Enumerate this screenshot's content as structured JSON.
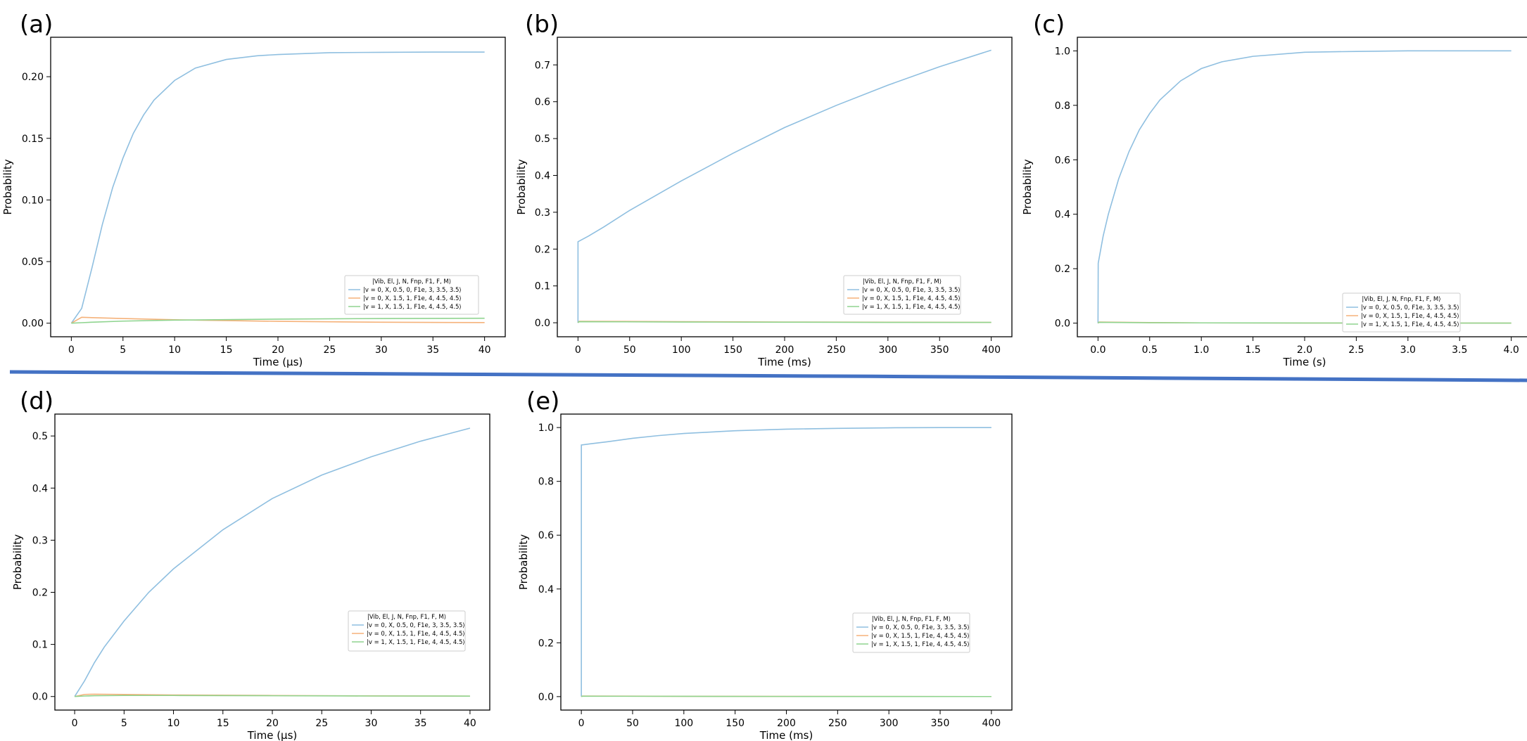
{
  "legend": {
    "title": "|Vib, El, J, N, Fnp, F1, F, M⟩",
    "entries": [
      "|v = 0, X, 0.5, 0, F1e, 3, 3.5, 3.5⟩",
      "|v = 0, X, 1.5, 1, F1e, 4, 4.5, 4.5⟩",
      "|v = 1, X, 1.5, 1, F1e, 4, 4.5, 4.5⟩"
    ]
  },
  "colors": {
    "series": [
      "#8fbfe0",
      "#f5b27a",
      "#8fd48f"
    ],
    "divider": "#4472c4",
    "axes": "#000000"
  },
  "chart_data": [
    {
      "panel": "(a)",
      "type": "line",
      "xlabel": "Time (μs)",
      "ylabel": "Probability",
      "xlim": [
        -2,
        42
      ],
      "ylim": [
        -0.011,
        0.232
      ],
      "xticks": [
        0,
        5,
        10,
        15,
        20,
        25,
        30,
        35,
        40
      ],
      "yticks": [
        0.0,
        0.05,
        0.1,
        0.15,
        0.2
      ],
      "ytick_labels": [
        "0.00",
        "0.05",
        "0.10",
        "0.15",
        "0.20"
      ],
      "grid": false,
      "legend_position": "lower-right",
      "series": [
        {
          "x": [
            0,
            1,
            2,
            3,
            4,
            5,
            6,
            7,
            8,
            10,
            12,
            15,
            18,
            20,
            25,
            30,
            35,
            40
          ],
          "values": [
            0.0,
            0.012,
            0.045,
            0.08,
            0.11,
            0.134,
            0.154,
            0.169,
            0.181,
            0.197,
            0.207,
            0.214,
            0.217,
            0.218,
            0.2195,
            0.2198,
            0.22,
            0.22
          ]
        },
        {
          "x": [
            0,
            1,
            2,
            5,
            10,
            20,
            30,
            40
          ],
          "values": [
            0.0,
            0.0048,
            0.0045,
            0.0038,
            0.0028,
            0.0015,
            0.0008,
            0.0005
          ]
        },
        {
          "x": [
            0,
            1,
            2,
            5,
            10,
            20,
            30,
            40
          ],
          "values": [
            0.0,
            0.0004,
            0.0008,
            0.0017,
            0.0025,
            0.0033,
            0.0038,
            0.004
          ]
        }
      ]
    },
    {
      "panel": "(b)",
      "type": "line",
      "xlabel": "Time (ms)",
      "ylabel": "Probability",
      "xlim": [
        -20,
        420
      ],
      "ylim": [
        -0.038,
        0.775
      ],
      "xticks": [
        0,
        50,
        100,
        150,
        200,
        250,
        300,
        350,
        400
      ],
      "yticks": [
        0.0,
        0.1,
        0.2,
        0.3,
        0.4,
        0.5,
        0.6,
        0.7
      ],
      "ytick_labels": [
        "0.0",
        "0.1",
        "0.2",
        "0.3",
        "0.4",
        "0.5",
        "0.6",
        "0.7"
      ],
      "grid": false,
      "legend_position": "lower-right",
      "series": [
        {
          "x": [
            0,
            0.02,
            10,
            25,
            50,
            75,
            100,
            150,
            200,
            250,
            300,
            350,
            400
          ],
          "values": [
            0.0,
            0.22,
            0.235,
            0.26,
            0.305,
            0.345,
            0.385,
            0.46,
            0.53,
            0.59,
            0.645,
            0.695,
            0.74
          ]
        },
        {
          "x": [
            0,
            1,
            100,
            200,
            300,
            400
          ],
          "values": [
            0.0,
            0.004,
            0.003,
            0.002,
            0.0015,
            0.001
          ]
        },
        {
          "x": [
            0,
            1,
            100,
            200,
            300,
            400
          ],
          "values": [
            0.0,
            0.003,
            0.002,
            0.0015,
            0.001,
            0.001
          ]
        }
      ]
    },
    {
      "panel": "(c)",
      "type": "line",
      "xlabel": "Time (s)",
      "ylabel": "Probability",
      "xlim": [
        -0.2,
        4.2
      ],
      "ylim": [
        -0.05,
        1.05
      ],
      "xticks": [
        0.0,
        0.5,
        1.0,
        1.5,
        2.0,
        2.5,
        3.0,
        3.5,
        4.0
      ],
      "xtick_labels": [
        "0.0",
        "0.5",
        "1.0",
        "1.5",
        "2.0",
        "2.5",
        "3.0",
        "3.5",
        "4.0"
      ],
      "yticks": [
        0.0,
        0.2,
        0.4,
        0.6,
        0.8,
        1.0
      ],
      "ytick_labels": [
        "0.0",
        "0.2",
        "0.4",
        "0.6",
        "0.8",
        "1.0"
      ],
      "grid": false,
      "legend_position": "lower-right",
      "series": [
        {
          "x": [
            0,
            0.002,
            0.05,
            0.1,
            0.2,
            0.3,
            0.4,
            0.5,
            0.6,
            0.8,
            1.0,
            1.2,
            1.5,
            2.0,
            2.5,
            3.0,
            3.5,
            4.0
          ],
          "values": [
            0.0,
            0.22,
            0.32,
            0.4,
            0.53,
            0.63,
            0.71,
            0.77,
            0.82,
            0.89,
            0.935,
            0.96,
            0.98,
            0.995,
            0.998,
            1.0,
            1.0,
            1.0
          ]
        },
        {
          "x": [
            0,
            0.01,
            0.5,
            1.0,
            2.0,
            4.0
          ],
          "values": [
            0.0,
            0.004,
            0.002,
            0.001,
            0.0005,
            0.0003
          ]
        },
        {
          "x": [
            0,
            0.01,
            0.5,
            1.0,
            2.0,
            4.0
          ],
          "values": [
            0.0,
            0.003,
            0.0015,
            0.001,
            0.0005,
            0.0003
          ]
        }
      ]
    },
    {
      "panel": "(d)",
      "type": "line",
      "xlabel": "Time (μs)",
      "ylabel": "Probability",
      "xlim": [
        -2,
        42
      ],
      "ylim": [
        -0.026,
        0.542
      ],
      "xticks": [
        0,
        5,
        10,
        15,
        20,
        25,
        30,
        35,
        40
      ],
      "yticks": [
        0.0,
        0.1,
        0.2,
        0.3,
        0.4,
        0.5
      ],
      "ytick_labels": [
        "0.0",
        "0.1",
        "0.2",
        "0.3",
        "0.4",
        "0.5"
      ],
      "grid": false,
      "legend_position": "lower-right",
      "series": [
        {
          "x": [
            0,
            1,
            2,
            3,
            5,
            7.5,
            10,
            15,
            20,
            25,
            30,
            35,
            40
          ],
          "values": [
            0.0,
            0.03,
            0.065,
            0.095,
            0.145,
            0.2,
            0.245,
            0.32,
            0.38,
            0.425,
            0.46,
            0.49,
            0.515
          ]
        },
        {
          "x": [
            0,
            1,
            2,
            5,
            10,
            20,
            30,
            40
          ],
          "values": [
            0.0,
            0.004,
            0.0045,
            0.004,
            0.003,
            0.002,
            0.0012,
            0.0008
          ]
        },
        {
          "x": [
            0,
            1,
            2,
            5,
            10,
            20,
            30,
            40
          ],
          "values": [
            0.0,
            0.001,
            0.0015,
            0.002,
            0.002,
            0.0015,
            0.001,
            0.0008
          ]
        }
      ]
    },
    {
      "panel": "(e)",
      "type": "line",
      "xlabel": "Time (ms)",
      "ylabel": "Probability",
      "xlim": [
        -20,
        420
      ],
      "ylim": [
        -0.05,
        1.05
      ],
      "xticks": [
        0,
        50,
        100,
        150,
        200,
        250,
        300,
        350,
        400
      ],
      "yticks": [
        0.0,
        0.2,
        0.4,
        0.6,
        0.8,
        1.0
      ],
      "ytick_labels": [
        "0.0",
        "0.2",
        "0.4",
        "0.6",
        "0.8",
        "1.0"
      ],
      "grid": false,
      "legend_position": "lower-right",
      "series": [
        {
          "x": [
            0,
            0.02,
            10,
            25,
            50,
            75,
            100,
            150,
            200,
            250,
            300,
            350,
            400
          ],
          "values": [
            0.0,
            0.935,
            0.94,
            0.947,
            0.96,
            0.97,
            0.978,
            0.988,
            0.994,
            0.997,
            0.999,
            1.0,
            1.0
          ]
        },
        {
          "x": [
            0,
            1,
            100,
            200,
            300,
            400
          ],
          "values": [
            0.0,
            0.002,
            0.0012,
            0.0008,
            0.0005,
            0.0003
          ]
        },
        {
          "x": [
            0,
            1,
            100,
            200,
            300,
            400
          ],
          "values": [
            0.0,
            0.0015,
            0.001,
            0.0006,
            0.0004,
            0.0003
          ]
        }
      ]
    }
  ]
}
